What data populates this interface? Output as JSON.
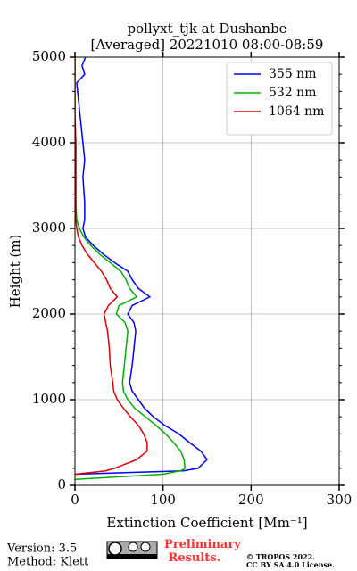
{
  "chart_data": {
    "type": "profile",
    "title": [
      "pollyxt_tjk at Dushanbe",
      "[Averaged] 20221010 08:00-08:59"
    ],
    "xlabel": "Extinction Coefficient [Mm⁻¹]",
    "ylabel": "Height (m)",
    "y": [
      70,
      130,
      170,
      200,
      300,
      400,
      500,
      600,
      700,
      800,
      900,
      1000,
      1100,
      1200,
      1400,
      1600,
      1800,
      1900,
      2000,
      2100,
      2200,
      2300,
      2400,
      2500,
      2600,
      2700,
      2800,
      2900,
      3000,
      3100,
      3300,
      3600,
      3800,
      4000,
      4300,
      4500,
      4700,
      4800,
      4900,
      5000
    ],
    "series": [
      {
        "name": "355 nm",
        "color": "#0000ff",
        "values": [
          null,
          0,
          123,
          140,
          150,
          143,
          130,
          118,
          102,
          89,
          79,
          72,
          65,
          62,
          65,
          67,
          69,
          67,
          60,
          65,
          85,
          72,
          65,
          60,
          45,
          32,
          21,
          12,
          9,
          11,
          11,
          9,
          11,
          9,
          6,
          4,
          2,
          11,
          8,
          12
        ]
      },
      {
        "name": "532 nm",
        "color": "#00b000",
        "values": [
          0,
          100,
          120,
          125,
          124,
          120,
          112,
          103,
          92,
          80,
          68,
          60,
          55,
          54,
          56,
          58,
          60,
          57,
          47,
          50,
          70,
          62,
          58,
          52,
          40,
          28,
          18,
          10,
          5,
          2,
          1,
          1,
          1,
          1,
          0,
          0,
          0,
          0,
          0,
          0
        ]
      },
      {
        "name": "1064 nm",
        "color": "#e00000",
        "values": [
          null,
          0,
          35,
          45,
          70,
          82,
          82,
          78,
          72,
          63,
          55,
          48,
          44,
          43,
          40,
          39,
          37,
          35,
          33,
          38,
          48,
          40,
          36,
          30,
          22,
          14,
          8,
          4,
          2,
          1,
          1,
          1,
          1,
          1,
          0,
          0,
          0,
          0,
          0,
          0
        ]
      }
    ],
    "xlim": [
      0,
      300
    ],
    "xticks": [
      0,
      100,
      200,
      300
    ],
    "ylim": [
      0,
      5000
    ],
    "yticks": [
      0,
      1000,
      2000,
      3000,
      4000,
      5000
    ],
    "grid": true,
    "legend": "upper right"
  },
  "footer": {
    "version": "Version: 3.5",
    "method": "Method: Klett",
    "preliminary": "Preliminary Results.",
    "copyright": "© TROPOS 2022.",
    "license": "CC BY SA 4.0 License."
  }
}
